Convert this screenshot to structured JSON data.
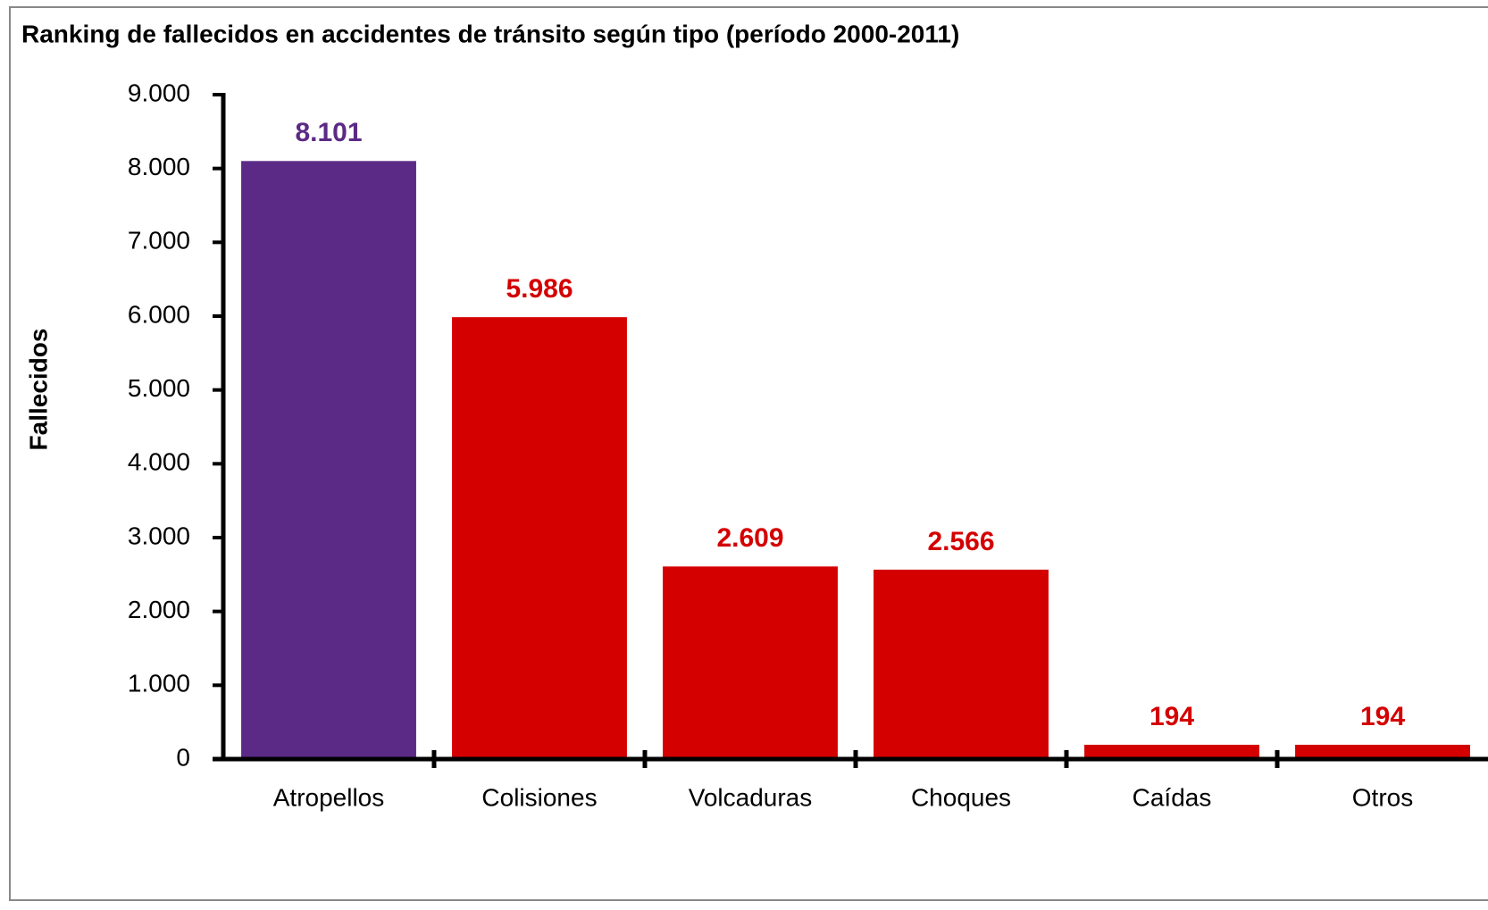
{
  "chart_data": {
    "type": "bar",
    "title": "Ranking de fallecidos en accidentes de tránsito según tipo (período 2000-2011)",
    "ylabel": "Fallecidos",
    "categories": [
      "Atropellos",
      "Colisiones",
      "Volcaduras",
      "Choques",
      "Caídas",
      "Otros"
    ],
    "values": [
      8101,
      5986,
      2609,
      2566,
      194,
      194
    ],
    "value_labels": [
      "8.101",
      "5.986",
      "2.609",
      "2.566",
      "194",
      "194"
    ],
    "colors": [
      "#5b2a86",
      "#d40000",
      "#d40000",
      "#d40000",
      "#d40000",
      "#d40000"
    ],
    "ylim": [
      0,
      9000
    ],
    "yticks": [
      0,
      {
        "value": 1000,
        "label": "1.000"
      },
      {
        "value": 2000,
        "label": "2.000"
      },
      {
        "value": 3000,
        "label": "3.000"
      },
      {
        "value": 4000,
        "label": "4.000"
      },
      {
        "value": 5000,
        "label": "5.000"
      },
      {
        "value": 6000,
        "label": "6.000"
      },
      {
        "value": 7000,
        "label": "7.000"
      },
      {
        "value": 8000,
        "label": "8.000"
      },
      {
        "value": 9000,
        "label": "9.000"
      }
    ],
    "grid": false
  }
}
